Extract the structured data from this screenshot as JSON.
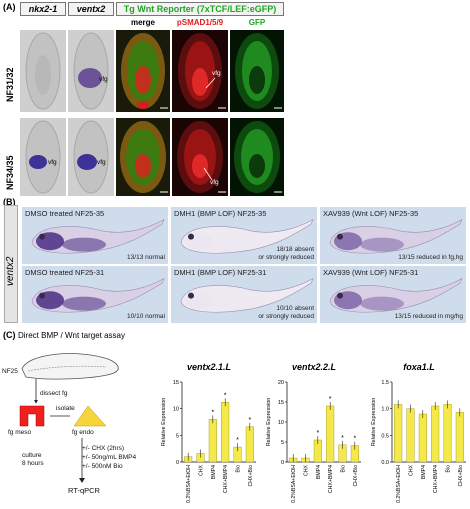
{
  "panel_a": {
    "label": "(A)",
    "headers": {
      "col1": "nkx2-1",
      "col2": "ventx2",
      "reporter": "Tg Wnt Reporter (7xTCF/LEF:eGFP)"
    },
    "subheaders": {
      "merge": "merge",
      "psmad": "pSMAD1/5/9",
      "gfp": "GFP"
    },
    "rows": [
      "NF31/32",
      "NF34/35"
    ],
    "vfg": "vfg",
    "colors": {
      "psmad": "#e21b1b",
      "gfp": "#1fa51f",
      "reporter": "#1fa51f"
    }
  },
  "panel_b": {
    "label": "(B)",
    "gene": "ventx2",
    "images": [
      {
        "title": "DMSO treated NF25-35",
        "count": "13/13 normal"
      },
      {
        "title": "DMH1 (BMP LOF) NF25-35",
        "count": "18/18 absent\nor strongly reduced"
      },
      {
        "title": "XAV939 (Wnt LOF) NF25-35",
        "count": "13/15 reduced in fg,hg"
      },
      {
        "title": "DMSO treated NF25-31",
        "count": "10/10 normal"
      },
      {
        "title": "DMH1 (BMP LOF) NF25-31",
        "count": "10/10 absent\nor strongly reduced"
      },
      {
        "title": "XAV939 (Wnt LOF) NF25-31",
        "count": "13/15 reduced in mg/hg"
      }
    ]
  },
  "panel_c": {
    "label": "(C)",
    "title": "Direct  BMP / Wnt  target assay",
    "flow": {
      "stage": "NF25",
      "dissect": "dissect fg",
      "isolate": "isolate",
      "meso": "fg meso",
      "endo": "fg endo",
      "culture": "culture\n8 hours",
      "treatments": "+/-  CHX (2hrs)\n+/-  50ng/mL BMP4\n+/-  500nM Bio",
      "readout": "RT-qPCR"
    }
  },
  "chart_data": [
    {
      "type": "bar",
      "title": "ventx2.1.L",
      "ylabel": "Relative Expression",
      "categories": [
        "0.2%BSA+EtOH",
        "CHX",
        "BMP4",
        "CHX+BMP4",
        "Bio",
        "CHX+Bio"
      ],
      "values": [
        1.0,
        1.6,
        8.0,
        11.2,
        2.8,
        6.6
      ],
      "significant": [
        false,
        false,
        true,
        true,
        true,
        true
      ],
      "ylim": [
        0,
        15
      ],
      "yticks": [
        0,
        5,
        10,
        15
      ]
    },
    {
      "type": "bar",
      "title": "ventx2.2.L",
      "ylabel": "Relative Expression",
      "categories": [
        "0.2%BSA+EtOH",
        "CHX",
        "BMP4",
        "CHX+BMP4",
        "Bio",
        "CHX+Bio"
      ],
      "values": [
        1.0,
        1.0,
        5.5,
        14.0,
        4.3,
        4.1
      ],
      "significant": [
        false,
        false,
        true,
        true,
        true,
        true
      ],
      "ylim": [
        0,
        20
      ],
      "yticks": [
        0,
        5,
        10,
        15,
        20
      ]
    },
    {
      "type": "bar",
      "title": "foxa1.L",
      "ylabel": "Relative Expression",
      "categories": [
        "0.2%BSA+EtOH",
        "CHX",
        "BMP4",
        "CHX+BMP4",
        "Bio",
        "CHX+Bio"
      ],
      "values": [
        1.08,
        1.0,
        0.9,
        1.05,
        1.08,
        0.93
      ],
      "significant": [
        false,
        false,
        false,
        false,
        false,
        false
      ],
      "ylim": [
        0,
        1.5
      ],
      "yticks": [
        0.0,
        0.5,
        1.0,
        1.5
      ]
    }
  ],
  "style": {
    "bar_color": "#f5e94a",
    "bar_edge": "#9a8f10"
  }
}
